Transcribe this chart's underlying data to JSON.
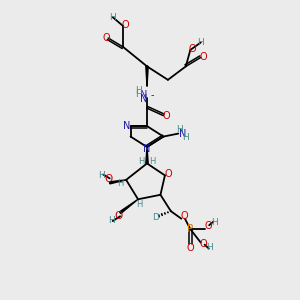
{
  "bg_color": "#ebebeb",
  "fig_size": [
    3.0,
    3.0
  ],
  "dpi": 100,
  "xlim": [
    0.5,
    5.5
  ],
  "ylim": [
    0.3,
    10.3
  ]
}
